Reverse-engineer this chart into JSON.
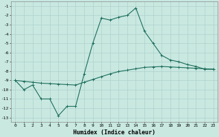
{
  "xlabel": "Humidex (Indice chaleur)",
  "ylabel": "",
  "background_color": "#c8e8e0",
  "grid_color": "#a8ccc8",
  "line_color": "#1a6b5a",
  "xlim": [
    -0.5,
    23.5
  ],
  "ylim": [
    -13.5,
    -0.5
  ],
  "x_ticks": [
    0,
    1,
    2,
    3,
    4,
    5,
    6,
    7,
    8,
    9,
    10,
    11,
    12,
    13,
    14,
    15,
    16,
    17,
    18,
    19,
    20,
    21,
    22,
    23
  ],
  "y_ticks": [
    -1,
    -2,
    -3,
    -4,
    -5,
    -6,
    -7,
    -8,
    -9,
    -10,
    -11,
    -12,
    -13
  ],
  "line1_x": [
    0,
    1,
    2,
    3,
    4,
    5,
    6,
    7,
    8,
    9,
    10,
    11,
    12,
    13,
    14,
    15,
    16,
    17,
    18,
    19,
    20,
    21,
    22,
    23
  ],
  "line1_y": [
    -9.0,
    -10.0,
    -9.5,
    -11.0,
    -11.0,
    -12.8,
    -11.8,
    -11.8,
    -8.3,
    -5.0,
    -2.3,
    -2.5,
    -2.2,
    -2.0,
    -1.2,
    -3.7,
    -5.0,
    -6.3,
    -6.8,
    -7.0,
    -7.3,
    -7.5,
    -7.8,
    -7.8
  ],
  "line2_x": [
    0,
    1,
    2,
    3,
    4,
    5,
    6,
    7,
    8,
    9,
    10,
    11,
    12,
    13,
    14,
    15,
    16,
    17,
    18,
    19,
    20,
    21,
    22,
    23
  ],
  "line2_y": [
    -9.0,
    -9.1,
    -9.2,
    -9.3,
    -9.35,
    -9.4,
    -9.45,
    -9.5,
    -9.2,
    -8.9,
    -8.6,
    -8.3,
    -8.05,
    -7.9,
    -7.75,
    -7.6,
    -7.55,
    -7.5,
    -7.55,
    -7.6,
    -7.65,
    -7.7,
    -7.75,
    -7.8
  ],
  "marker": "+",
  "marker_size": 3,
  "line_width": 0.8,
  "tick_fontsize": 4.5,
  "xlabel_fontsize": 6.0
}
